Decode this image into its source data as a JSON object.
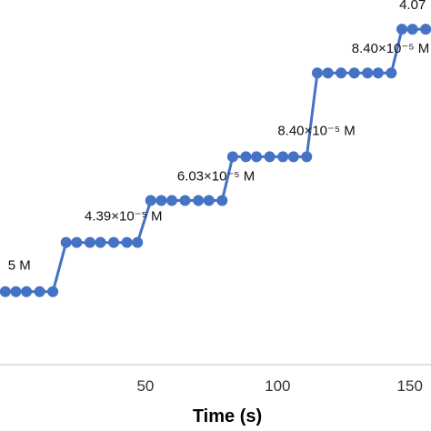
{
  "chart_data": {
    "type": "line",
    "xlabel": "Time (s)",
    "ylabel": "",
    "title": "",
    "xlim": [
      -5,
      158
    ],
    "ylim": [
      0,
      10
    ],
    "x_ticks": [
      50,
      100,
      150
    ],
    "grid": false,
    "series_color": "#4472C4",
    "series": [
      {
        "x": [
          -3,
          1,
          5,
          10,
          15,
          20,
          24,
          29,
          33,
          38,
          43,
          47,
          52,
          56,
          60,
          65,
          70,
          74,
          79,
          83,
          88,
          92,
          97,
          102,
          106,
          111,
          115,
          119,
          124,
          129,
          134,
          138,
          143,
          147,
          151,
          156
        ],
        "y": [
          2.0,
          2.0,
          2.0,
          2.0,
          2.0,
          3.35,
          3.35,
          3.35,
          3.35,
          3.35,
          3.35,
          3.35,
          4.5,
          4.5,
          4.5,
          4.5,
          4.5,
          4.5,
          4.5,
          5.7,
          5.7,
          5.7,
          5.7,
          5.7,
          5.7,
          5.7,
          8.0,
          8.0,
          8.0,
          8.0,
          8.0,
          8.0,
          8.0,
          9.2,
          9.2,
          9.2
        ]
      }
    ],
    "annotations": [
      {
        "label": "5 M",
        "x": -2,
        "y": 2.6
      },
      {
        "label": "4.39×10⁻⁵ M",
        "x": 27,
        "y": 3.95
      },
      {
        "label": "6.03×10⁻⁵ M",
        "x": 62,
        "y": 5.05
      },
      {
        "label": "8.40×10⁻⁵ M",
        "x": 100,
        "y": 6.3
      },
      {
        "label": "8.40×10⁻⁵ M",
        "x": 128,
        "y": 8.55
      },
      {
        "label": "4.07",
        "x": 146,
        "y": 9.75
      }
    ]
  }
}
